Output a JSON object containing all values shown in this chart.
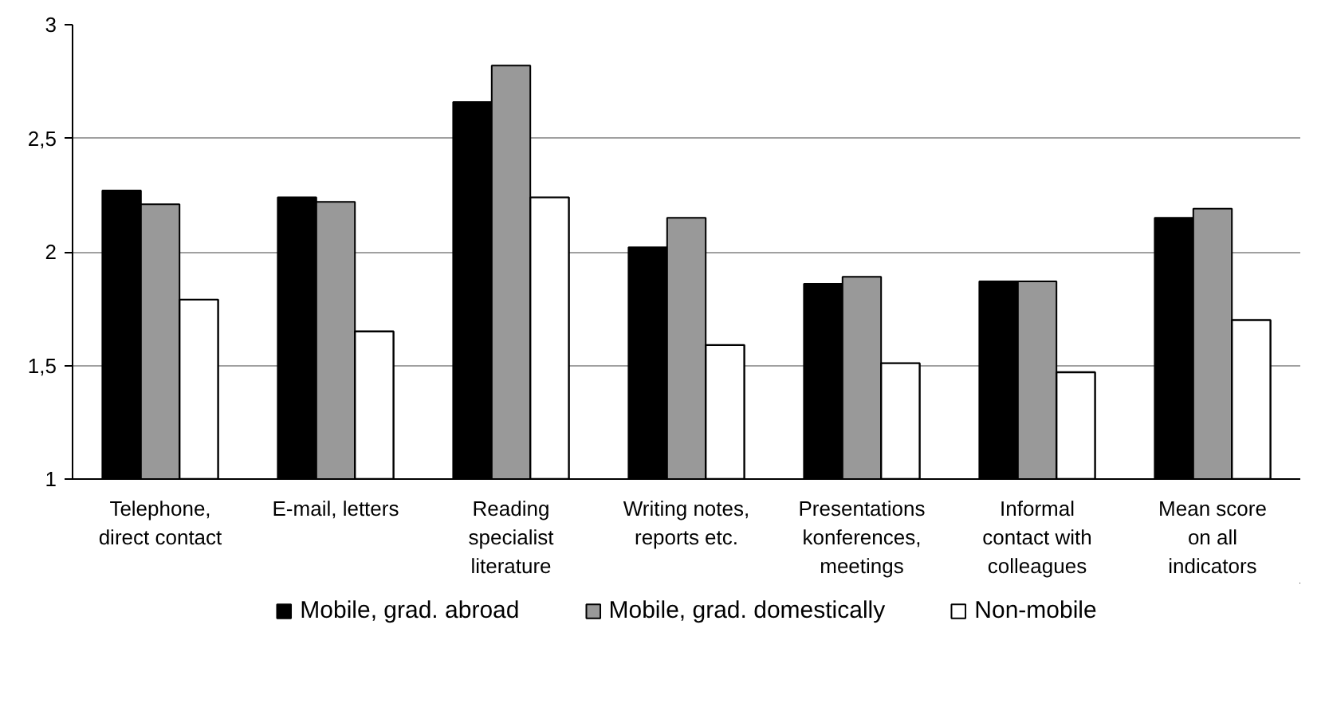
{
  "chart_data": {
    "type": "bar",
    "categories": [
      "Telephone,\ndirect contact",
      "E-mail, letters",
      "Reading\nspecialist\nliterature",
      "Writing notes,\nreports etc.",
      "Presentations\nkonferences,\nmeetings",
      "Informal\ncontact with\ncolleagues",
      "Mean score\non all\nindicators"
    ],
    "series": [
      {
        "name": "Mobile, grad. abroad",
        "color": "#000000",
        "values": [
          2.27,
          2.24,
          2.66,
          2.02,
          1.86,
          1.87,
          2.15
        ]
      },
      {
        "name": "Mobile, grad. domestically",
        "color": "#999999",
        "values": [
          2.21,
          2.22,
          2.82,
          2.15,
          1.89,
          1.87,
          2.19
        ]
      },
      {
        "name": "Non-mobile",
        "color": "#ffffff",
        "values": [
          1.79,
          1.65,
          2.24,
          1.59,
          1.51,
          1.47,
          1.7
        ]
      }
    ],
    "ylim": [
      1,
      3
    ],
    "yticks": [
      1,
      {
        "value": 1.5,
        "label": "1,5"
      },
      2,
      {
        "value": 2.5,
        "label": "2,5"
      },
      3
    ],
    "grid": "y",
    "legend": "bottom"
  }
}
